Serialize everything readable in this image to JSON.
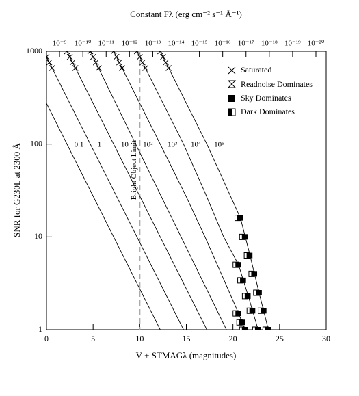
{
  "chart_data": {
    "type": "line",
    "top_axis_title": "Constant Fλ (erg cm⁻² s⁻¹ Å⁻¹)",
    "x_label": "V + STMAGλ (magnitudes)",
    "y_label": "SNR for G230L at 2300 Å",
    "xlim": [
      0,
      30
    ],
    "xticks": [
      0,
      5,
      10,
      15,
      20,
      25,
      30
    ],
    "ylim": [
      1,
      1000
    ],
    "yticks": [
      1,
      10,
      100,
      1000
    ],
    "log_y": true,
    "top_ticks": [
      {
        "value": 1.4,
        "label": "10⁻⁹"
      },
      {
        "value": 3.9,
        "label": "10⁻¹⁰"
      },
      {
        "value": 6.4,
        "label": "10⁻¹¹"
      },
      {
        "value": 8.9,
        "label": "10⁻¹²"
      },
      {
        "value": 11.4,
        "label": "10⁻¹³"
      },
      {
        "value": 13.9,
        "label": "10⁻¹⁴"
      },
      {
        "value": 16.4,
        "label": "10⁻¹⁵"
      },
      {
        "value": 18.9,
        "label": "10⁻¹⁶"
      },
      {
        "value": 21.4,
        "label": "10⁻¹⁷"
      },
      {
        "value": 23.9,
        "label": "10⁻¹⁸"
      },
      {
        "value": 26.4,
        "label": "10⁻¹⁹"
      },
      {
        "value": 28.9,
        "label": "10⁻²⁰"
      }
    ],
    "bright_limit": {
      "x": 10,
      "label": "Bright Object Limit"
    },
    "legend": [
      "Saturated",
      "Readnoise Dominates",
      "Sky Dominates",
      "Dark Dominates"
    ],
    "series": [
      {
        "name": "0.1",
        "x": [
          0,
          12.2
        ],
        "values": [
          275,
          1
        ]
      },
      {
        "name": "1",
        "x": [
          0,
          14.7
        ],
        "values": [
          870,
          1
        ],
        "saturated": {
          "x": [
            0,
            0.3,
            0.6
          ],
          "values": [
            870,
            760,
            660
          ]
        }
      },
      {
        "name": "10",
        "x": [
          2.2,
          17.2
        ],
        "values": [
          1000,
          1
        ],
        "saturated": {
          "x": [
            2.2,
            2.5,
            2.8,
            3.1
          ],
          "values": [
            1000,
            870,
            760,
            660
          ]
        }
      },
      {
        "name": "10²",
        "x": [
          4.7,
          19.3
        ],
        "values": [
          1000,
          1
        ],
        "saturated": {
          "x": [
            4.7,
            5.0,
            5.3,
            5.6
          ],
          "values": [
            1000,
            870,
            760,
            660
          ]
        }
      },
      {
        "name": "10³",
        "x": [
          7.2,
          12.2,
          15,
          17,
          19,
          20.6,
          21.3
        ],
        "values": [
          1000,
          100,
          27,
          10,
          3.5,
          1.5,
          1
        ],
        "saturated": {
          "x": [
            7.2,
            7.5,
            7.8,
            8.1
          ],
          "values": [
            1000,
            870,
            760,
            660
          ]
        },
        "sky": {
          "x": [
            20.6,
            21.0,
            21.3
          ],
          "values": [
            1.5,
            1.2,
            1
          ]
        },
        "dark": {
          "x": [
            20.3,
            20.7,
            21.0
          ],
          "values": [
            1.5,
            1.2,
            1
          ]
        }
      },
      {
        "name": "10⁴",
        "x": [
          9.7,
          14.7,
          17,
          19,
          20.6,
          21.7,
          22.7
        ],
        "values": [
          1000,
          100,
          30,
          10,
          5,
          2.2,
          1
        ],
        "saturated": {
          "x": [
            9.7,
            10.0,
            10.3,
            10.6
          ],
          "values": [
            1000,
            870,
            760,
            660
          ]
        },
        "sky": {
          "x": [
            20.6,
            21.1,
            21.6,
            22.1,
            22.7
          ],
          "values": [
            5,
            3.4,
            2.3,
            1.6,
            1
          ]
        },
        "dark": {
          "x": [
            20.3,
            20.8,
            21.3,
            21.8,
            22.4
          ],
          "values": [
            5,
            3.4,
            2.3,
            1.6,
            1
          ]
        }
      },
      {
        "name": "10⁵",
        "x": [
          12.2,
          17.2,
          19,
          20.8,
          21.8,
          22.8,
          23.8
        ],
        "values": [
          1000,
          100,
          40,
          16,
          6.5,
          2.5,
          1
        ],
        "saturated": {
          "x": [
            12.2,
            12.5,
            12.8,
            13.1
          ],
          "values": [
            1000,
            870,
            760,
            660
          ]
        },
        "sky": {
          "x": [
            20.8,
            21.3,
            21.8,
            22.3,
            22.8,
            23.3,
            23.8
          ],
          "values": [
            16,
            10,
            6.3,
            4,
            2.5,
            1.6,
            1
          ]
        },
        "dark": {
          "x": [
            20.5,
            21.0,
            21.5,
            22.0,
            22.5,
            23.0,
            23.5
          ],
          "values": [
            16,
            10,
            6.3,
            4,
            2.5,
            1.6,
            1
          ]
        }
      }
    ]
  }
}
